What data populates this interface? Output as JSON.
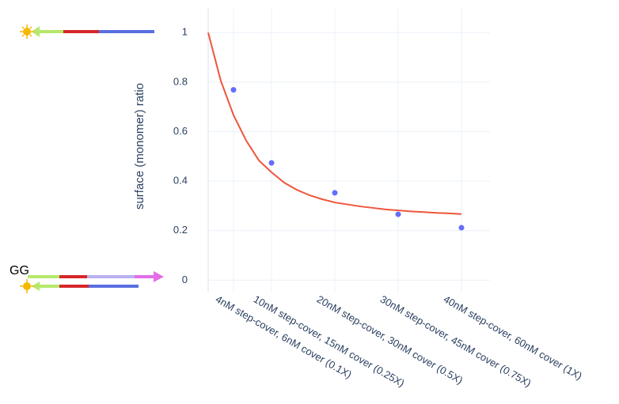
{
  "chart_data": {
    "type": "scatter",
    "annotation": "GG",
    "y_label": "surface (monomer) ratio",
    "xlim": [
      0,
      44.5
    ],
    "ylim": [
      -0.05,
      1.1
    ],
    "xticks": [
      {
        "value": 4,
        "label": "4nM step-cover, 6nM cover (0.1X)"
      },
      {
        "value": 10,
        "label": "10nM step-cover, 15nM cover (0.25X)"
      },
      {
        "value": 20,
        "label": "20nM step-cover, 30nM cover (0.5X)"
      },
      {
        "value": 30,
        "label": "30nM step-cover, 45nM cover (0.75X)"
      },
      {
        "value": 40,
        "label": "40nM step-cover, 60nM cover (1X)"
      }
    ],
    "yticks": [
      0,
      0.2,
      0.4,
      0.6,
      0.8,
      1
    ],
    "grid": true,
    "series": [
      {
        "mode": "markers",
        "color": "#636efa",
        "x": [
          4,
          10,
          20,
          30,
          40
        ],
        "values": [
          0.769,
          0.474,
          0.353,
          0.266,
          0.212
        ]
      },
      {
        "mode": "lines",
        "color": "#ef553b",
        "x": [
          0,
          2,
          4,
          6,
          8,
          10,
          12,
          14,
          16,
          18,
          20,
          22,
          24,
          26,
          28,
          30,
          32,
          34,
          36,
          38,
          40
        ],
        "values": [
          1,
          0.805,
          0.667,
          0.564,
          0.484,
          0.436,
          0.394,
          0.365,
          0.343,
          0.327,
          0.314,
          0.306,
          0.298,
          0.292,
          0.286,
          0.282,
          0.278,
          0.275,
          0.272,
          0.27,
          0.267
        ]
      }
    ]
  }
}
